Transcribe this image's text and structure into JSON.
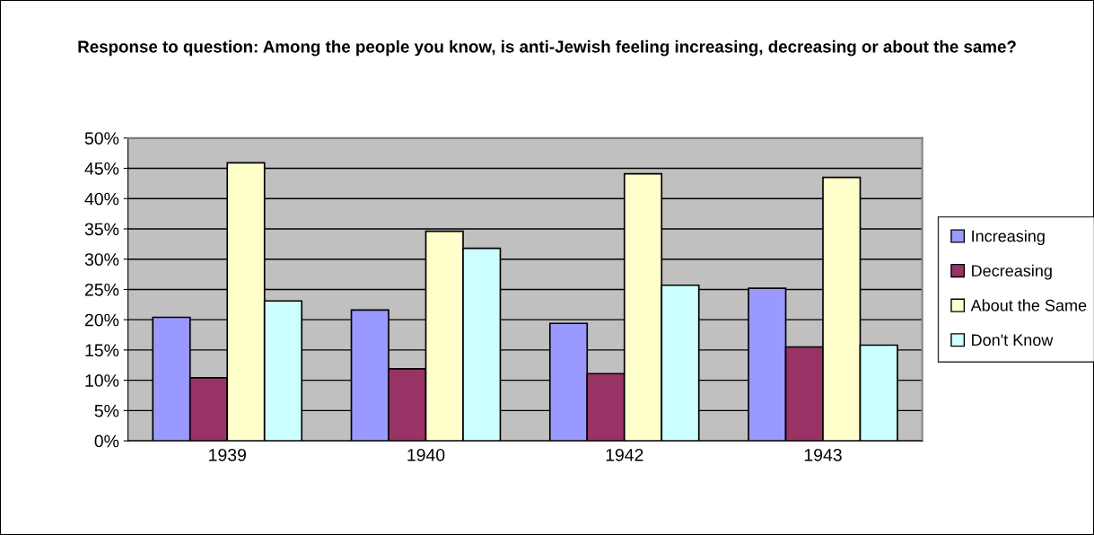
{
  "chart_data": {
    "type": "bar",
    "title": "Response to question: Among the people you know, is anti-Jewish feeling increasing, decreasing or about the same?",
    "categories": [
      "1939",
      "1940",
      "1942",
      "1943"
    ],
    "series": [
      {
        "name": "Increasing",
        "color": "#9999ff",
        "values": [
          20.4,
          21.6,
          19.4,
          25.2
        ]
      },
      {
        "name": "Decreasing",
        "color": "#993366",
        "values": [
          10.4,
          11.9,
          11.1,
          15.5
        ]
      },
      {
        "name": "About the Same",
        "color": "#ffffcc",
        "values": [
          45.9,
          34.6,
          44.1,
          43.5
        ]
      },
      {
        "name": "Don't Know",
        "color": "#ccffff",
        "values": [
          23.1,
          31.8,
          25.7,
          15.8
        ]
      }
    ],
    "ylim": [
      0,
      50
    ],
    "yticks": [
      {
        "value": 0,
        "label": "0%"
      },
      {
        "value": 5,
        "label": "5%"
      },
      {
        "value": 10,
        "label": "10%"
      },
      {
        "value": 15,
        "label": "15%"
      },
      {
        "value": 20,
        "label": "20%"
      },
      {
        "value": 25,
        "label": "25%"
      },
      {
        "value": 30,
        "label": "30%"
      },
      {
        "value": 35,
        "label": "35%"
      },
      {
        "value": 40,
        "label": "40%"
      },
      {
        "value": 45,
        "label": "45%"
      },
      {
        "value": 50,
        "label": "50%"
      }
    ],
    "grid": "y",
    "legend": "right"
  }
}
